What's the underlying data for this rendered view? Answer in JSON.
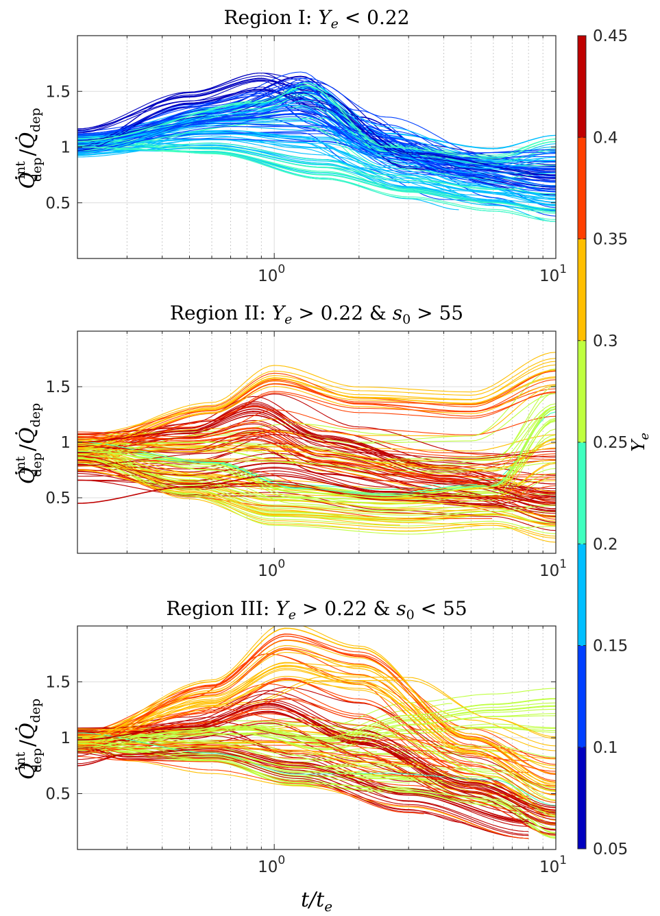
{
  "chart_data": [
    {
      "type": "line",
      "title": "Region I: Y_e < 0.22",
      "title_parts": {
        "prefix": "Region I: ",
        "var": "Y",
        "sub": "e",
        "rest": " < 0.22"
      },
      "xlabel": "t/t_e",
      "ylabel": "Q̇_dep^int / Q̇_dep",
      "xscale": "log",
      "xlim": [
        0.2,
        10
      ],
      "ylim": [
        0,
        2
      ],
      "x_ticks": [
        {
          "exp": "0",
          "value": 1
        },
        {
          "exp": "1",
          "value": 10
        }
      ],
      "y_ticks": [
        0.5,
        1,
        1.5
      ],
      "grid": true,
      "ye_range": [
        0.05,
        0.22
      ],
      "series_count": 120,
      "series": [
        {
          "ye": 0.07,
          "points": [
            [
              0.2,
              1.15
            ],
            [
              0.5,
              1.45
            ],
            [
              0.9,
              1.6
            ],
            [
              1.4,
              1.5
            ],
            [
              3,
              0.95
            ],
            [
              10,
              0.75
            ]
          ]
        },
        {
          "ye": 0.1,
          "points": [
            [
              0.2,
              1.1
            ],
            [
              0.6,
              1.3
            ],
            [
              1.25,
              1.55
            ],
            [
              2,
              1.2
            ],
            [
              4,
              0.85
            ],
            [
              10,
              0.8
            ]
          ]
        },
        {
          "ye": 0.15,
          "points": [
            [
              0.2,
              1.05
            ],
            [
              0.7,
              1.25
            ],
            [
              1.2,
              1.3
            ],
            [
              2.5,
              0.95
            ],
            [
              5,
              0.75
            ],
            [
              10,
              0.6
            ]
          ]
        },
        {
          "ye": 0.2,
          "points": [
            [
              0.2,
              1.0
            ],
            [
              0.6,
              0.95
            ],
            [
              1.5,
              0.75
            ],
            [
              3,
              0.6
            ],
            [
              6,
              0.5
            ],
            [
              10,
              0.42
            ]
          ]
        },
        {
          "ye": 0.21,
          "points": [
            [
              0.2,
              1.05
            ],
            [
              0.9,
              1.4
            ],
            [
              1.3,
              1.55
            ],
            [
              2.5,
              1.0
            ],
            [
              6,
              0.9
            ],
            [
              10,
              1.05
            ]
          ]
        }
      ]
    },
    {
      "type": "line",
      "title": "Region II: Y_e > 0.22 & s_0 > 55",
      "title_parts": {
        "prefix": "Region II: ",
        "var": "Y",
        "sub": "e",
        "mid": " > 0.22 & ",
        "var2": "s",
        "sub2": "0",
        "rest": " > 55"
      },
      "xlabel": "t/t_e",
      "ylabel": "Q̇_dep^int / Q̇_dep",
      "xscale": "log",
      "xlim": [
        0.2,
        10
      ],
      "ylim": [
        0,
        2
      ],
      "x_ticks": [
        {
          "exp": "0",
          "value": 1
        },
        {
          "exp": "1",
          "value": 10
        }
      ],
      "y_ticks": [
        0.5,
        1,
        1.5
      ],
      "grid": true,
      "ye_range": [
        0.22,
        0.45
      ],
      "series_count": 130,
      "series": [
        {
          "ye": 0.34,
          "points": [
            [
              0.2,
              0.95
            ],
            [
              0.6,
              1.3
            ],
            [
              1.0,
              1.58
            ],
            [
              2,
              1.4
            ],
            [
              5,
              1.35
            ],
            [
              10,
              1.65
            ]
          ]
        },
        {
          "ye": 0.43,
          "points": [
            [
              0.2,
              1.0
            ],
            [
              0.5,
              1.1
            ],
            [
              0.85,
              1.3
            ],
            [
              1.5,
              1.0
            ],
            [
              4,
              0.7
            ],
            [
              10,
              0.45
            ]
          ]
        },
        {
          "ye": 0.25,
          "points": [
            [
              0.2,
              0.92
            ],
            [
              0.6,
              0.8
            ],
            [
              1.2,
              0.55
            ],
            [
              2.5,
              0.5
            ],
            [
              6,
              0.6
            ],
            [
              10,
              1.3
            ]
          ]
        },
        {
          "ye": 0.3,
          "points": [
            [
              0.2,
              0.75
            ],
            [
              0.5,
              0.55
            ],
            [
              1.0,
              0.35
            ],
            [
              3,
              0.3
            ],
            [
              6,
              0.35
            ],
            [
              10,
              0.25
            ]
          ]
        },
        {
          "ye": 0.44,
          "points": [
            [
              0.2,
              0.45
            ],
            [
              0.5,
              0.6
            ],
            [
              1.0,
              0.7
            ],
            [
              2.5,
              0.55
            ],
            [
              6,
              0.5
            ],
            [
              10,
              0.4
            ]
          ]
        }
      ]
    },
    {
      "type": "line",
      "title": "Region III: Y_e > 0.22 & s_0 < 55",
      "title_parts": {
        "prefix": "Region III: ",
        "var": "Y",
        "sub": "e",
        "mid": " > 0.22 & ",
        "var2": "s",
        "sub2": "0",
        "rest": " < 55"
      },
      "xlabel": "t/t_e",
      "ylabel": "Q̇_dep^int / Q̇_dep",
      "xscale": "log",
      "xlim": [
        0.2,
        10
      ],
      "ylim": [
        0,
        2
      ],
      "x_ticks": [
        {
          "exp": "0",
          "value": 1
        },
        {
          "exp": "1",
          "value": 10
        }
      ],
      "y_ticks": [
        0.5,
        1,
        1.5
      ],
      "grid": true,
      "ye_range": [
        0.22,
        0.45
      ],
      "series_count": 130,
      "series": [
        {
          "ye": 0.35,
          "points": [
            [
              0.2,
              0.98
            ],
            [
              0.6,
              1.5
            ],
            [
              1.1,
              1.98
            ],
            [
              2,
              1.8
            ],
            [
              5,
              1.0
            ],
            [
              10,
              0.6
            ]
          ]
        },
        {
          "ye": 0.43,
          "points": [
            [
              0.2,
              0.98
            ],
            [
              0.5,
              1.1
            ],
            [
              0.95,
              1.3
            ],
            [
              2,
              1.0
            ],
            [
              5,
              0.6
            ],
            [
              10,
              0.35
            ]
          ]
        },
        {
          "ye": 0.26,
          "points": [
            [
              0.2,
              0.95
            ],
            [
              0.6,
              0.8
            ],
            [
              1.2,
              0.6
            ],
            [
              2.5,
              0.55
            ],
            [
              6,
              0.45
            ],
            [
              10,
              0.15
            ]
          ]
        },
        {
          "ye": 0.28,
          "points": [
            [
              0.2,
              0.97
            ],
            [
              0.8,
              1.1
            ],
            [
              1.5,
              1.0
            ],
            [
              3,
              1.2
            ],
            [
              6,
              1.3
            ],
            [
              10,
              1.35
            ]
          ]
        },
        {
          "ye": 0.44,
          "points": [
            [
              0.2,
              0.75
            ],
            [
              0.3,
              0.85
            ],
            [
              0.6,
              0.9
            ],
            [
              1.2,
              0.75
            ],
            [
              3,
              0.5
            ],
            [
              8,
              0.25
            ]
          ]
        }
      ]
    }
  ],
  "colorbar": {
    "label": "Y_e",
    "label_parts": {
      "var": "Y",
      "sub": "e"
    },
    "min": 0.05,
    "max": 0.45,
    "colormap": "jet",
    "levels": 8,
    "ticks": [
      "0.05",
      "0.1",
      "0.15",
      "0.2",
      "0.25",
      "0.3",
      "0.35",
      "0.4",
      "0.45"
    ]
  }
}
